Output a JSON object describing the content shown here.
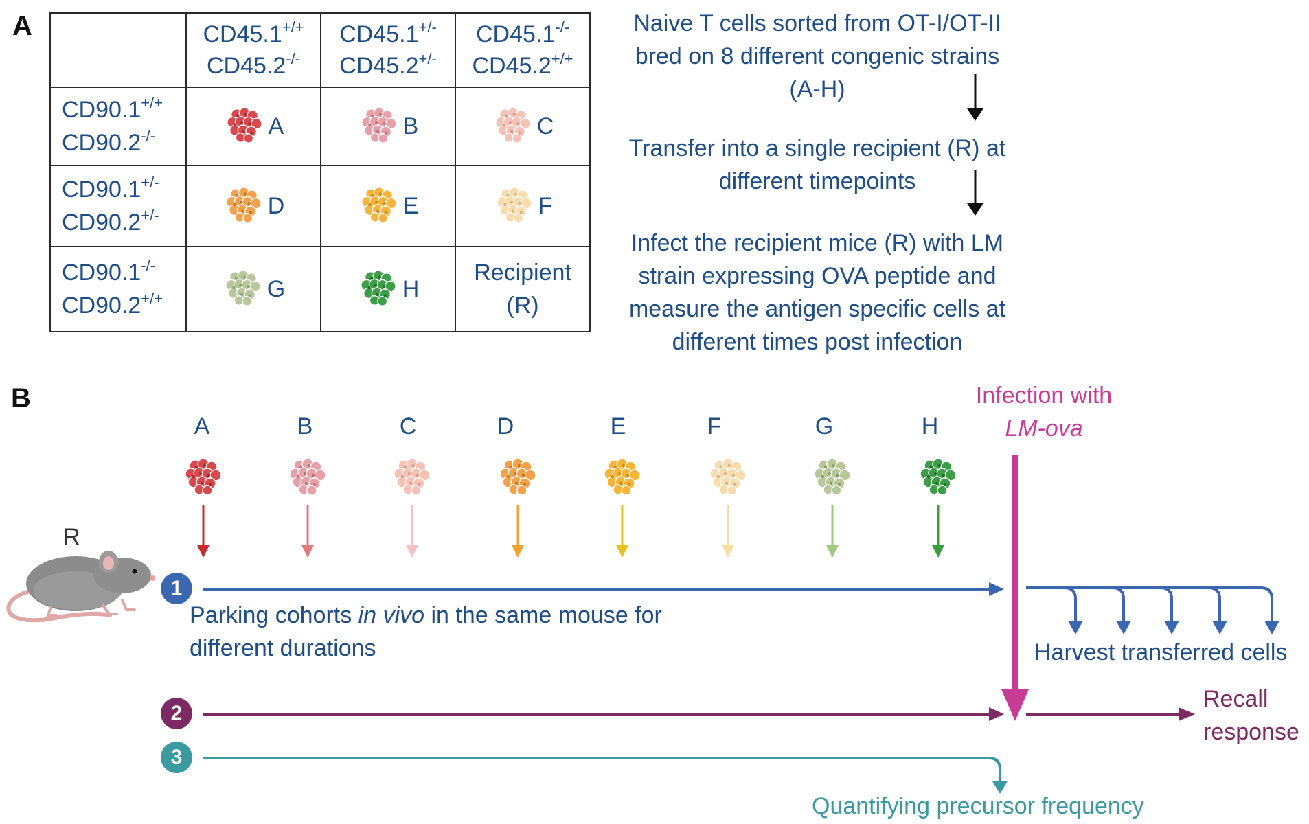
{
  "panel_a": {
    "label": "A",
    "col_headers": [
      {
        "l1": "CD45.1",
        "s1": "+/+",
        "l2": "CD45.2",
        "s2": "-/-"
      },
      {
        "l1": "CD45.1",
        "s1": "+/-",
        "l2": "CD45.2",
        "s2": "+/-"
      },
      {
        "l1": "CD45.1",
        "s1": "-/-",
        "l2": "CD45.2",
        "s2": "+/+"
      }
    ],
    "row_headers": [
      {
        "l1": "CD90.1",
        "s1": "+/+",
        "l2": "CD90.2",
        "s2": "-/-"
      },
      {
        "l1": "CD90.1",
        "s1": "+/-",
        "l2": "CD90.2",
        "s2": "+/-"
      },
      {
        "l1": "CD90.1",
        "s1": "-/-",
        "l2": "CD90.2",
        "s2": "+/+"
      }
    ],
    "cells": [
      "A",
      "B",
      "C",
      "D",
      "E",
      "F",
      "G",
      "H"
    ],
    "recipient_l1": "Recipient",
    "recipient_l2": "(R)",
    "flow": {
      "step1": "Naive T cells sorted from OT-I/OT-II bred on 8 different congenic strains (A-H)",
      "step2": "Transfer into a single recipient (R) at different timepoints",
      "step3": "Infect the recipient mice (R) with LM strain expressing OVA peptide and measure the antigen specific cells at different times post infection"
    }
  },
  "panel_b": {
    "label": "B",
    "mouse_label": "R",
    "cohorts": [
      "A",
      "B",
      "C",
      "D",
      "E",
      "F",
      "G",
      "H"
    ],
    "infection_l1": "Infection with",
    "infection_l2": "LM-ova",
    "step1": {
      "num": "1",
      "pre": "Parking cohorts ",
      "italic": "in vivo",
      "post": " in the same mouse for",
      "line2": "different durations"
    },
    "step2": {
      "num": "2"
    },
    "step3": {
      "num": "3"
    },
    "harvest": "Harvest transferred cells",
    "recall_l1": "Recall",
    "recall_l2": "response",
    "quantify": "Quantifying precursor frequency"
  },
  "colors": {
    "text_blue": "#1f4e86",
    "step1": "#3a67b0",
    "step2": "#7d2a64",
    "step3": "#3a9aa0",
    "infection": "#c93c96",
    "cohort_colors": [
      "#d9484d",
      "#e8a0a8",
      "#f5c2b5",
      "#f1a24a",
      "#f5b43a",
      "#f7dcb0",
      "#b7c79a",
      "#3e9e48"
    ]
  }
}
